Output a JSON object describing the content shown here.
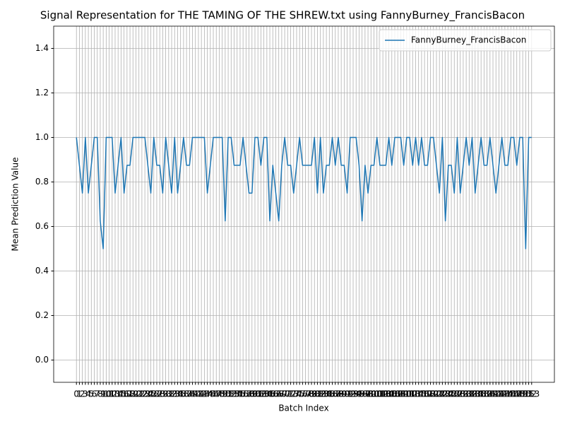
{
  "chart_data": {
    "type": "line",
    "title": "Signal Representation for THE TAMING OF THE SHREW.txt using FannyBurney_FrancisBacon",
    "xlabel": "Batch Index",
    "ylabel": "Mean Prediction Value",
    "x": [
      0,
      1,
      2,
      3,
      4,
      5,
      6,
      7,
      8,
      9,
      10,
      11,
      12,
      13,
      14,
      15,
      16,
      17,
      18,
      19,
      20,
      21,
      22,
      23,
      24,
      25,
      26,
      27,
      28,
      29,
      30,
      31,
      32,
      33,
      34,
      35,
      36,
      37,
      38,
      39,
      40,
      41,
      42,
      43,
      44,
      45,
      46,
      47,
      48,
      49,
      50,
      51,
      52,
      53,
      54,
      55,
      56,
      57,
      58,
      59,
      60,
      61,
      62,
      63,
      64,
      65,
      66,
      67,
      68,
      69,
      70,
      71,
      72,
      73,
      74,
      75,
      76,
      77,
      78,
      79,
      80,
      81,
      82,
      83,
      84,
      85,
      86,
      87,
      88,
      89,
      90,
      91,
      92,
      93,
      94,
      95,
      96,
      97,
      98,
      99,
      100,
      101,
      102,
      103,
      104,
      105,
      106,
      107,
      108,
      109,
      110,
      111,
      112,
      113,
      114,
      115,
      116,
      117,
      118,
      119,
      120,
      121,
      122,
      123,
      124,
      125,
      126,
      127,
      128,
      129,
      130,
      131,
      132,
      133,
      134,
      135,
      136,
      137,
      138,
      139,
      140,
      141,
      142,
      143,
      144,
      145,
      146,
      147,
      148,
      149,
      150,
      151,
      152,
      153
    ],
    "series": [
      {
        "name": "FannyBurney_FrancisBacon",
        "color": "#1f77b4",
        "values": [
          1.0,
          0.875,
          0.75,
          1.0,
          0.75,
          0.875,
          1.0,
          1.0,
          0.625,
          0.5,
          1.0,
          1.0,
          1.0,
          0.75,
          0.875,
          1.0,
          0.75,
          0.875,
          0.875,
          1.0,
          1.0,
          1.0,
          1.0,
          1.0,
          0.875,
          0.75,
          1.0,
          0.875,
          0.875,
          0.75,
          1.0,
          0.875,
          0.75,
          1.0,
          0.75,
          0.875,
          1.0,
          0.875,
          0.875,
          1.0,
          1.0,
          1.0,
          1.0,
          1.0,
          0.75,
          0.875,
          1.0,
          1.0,
          1.0,
          1.0,
          0.625,
          1.0,
          1.0,
          0.875,
          0.875,
          0.875,
          1.0,
          0.875,
          0.75,
          0.75,
          1.0,
          1.0,
          0.875,
          1.0,
          1.0,
          0.625,
          0.875,
          0.75,
          0.625,
          0.875,
          1.0,
          0.875,
          0.875,
          0.75,
          0.875,
          1.0,
          0.875,
          0.875,
          0.875,
          0.875,
          1.0,
          0.75,
          1.0,
          0.75,
          0.875,
          0.875,
          1.0,
          0.875,
          1.0,
          0.875,
          0.875,
          0.75,
          1.0,
          1.0,
          1.0,
          0.875,
          0.625,
          0.875,
          0.75,
          0.875,
          0.875,
          1.0,
          0.875,
          0.875,
          0.875,
          1.0,
          0.875,
          1.0,
          1.0,
          1.0,
          0.875,
          1.0,
          1.0,
          0.875,
          1.0,
          0.875,
          1.0,
          0.875,
          0.875,
          1.0,
          1.0,
          0.875,
          0.75,
          1.0,
          0.625,
          0.875,
          0.875,
          0.75,
          1.0,
          0.75,
          0.875,
          1.0,
          0.875,
          1.0,
          0.75,
          0.875,
          1.0,
          0.875,
          0.875,
          1.0,
          0.875,
          0.75,
          0.875,
          1.0,
          0.875,
          0.875,
          1.0,
          1.0,
          0.875,
          1.0,
          1.0,
          0.5,
          1.0,
          1.0
        ]
      }
    ],
    "xlim": [
      -7.65,
      160.65
    ],
    "xticks": [
      0,
      1,
      2,
      3,
      4,
      5,
      6,
      7,
      8,
      9,
      10,
      11,
      12,
      13,
      14,
      15,
      16,
      17,
      18,
      19,
      20,
      21,
      22,
      23,
      24,
      25,
      26,
      27,
      28,
      29,
      30,
      31,
      32,
      33,
      34,
      35,
      36,
      37,
      38,
      39,
      40,
      41,
      42,
      43,
      44,
      45,
      46,
      47,
      48,
      49,
      50,
      51,
      52,
      53,
      54,
      55,
      56,
      57,
      58,
      59,
      60,
      61,
      62,
      63,
      64,
      65,
      66,
      67,
      68,
      69,
      70,
      71,
      72,
      73,
      74,
      75,
      76,
      77,
      78,
      79,
      80,
      81,
      82,
      83,
      84,
      85,
      86,
      87,
      88,
      89,
      90,
      91,
      92,
      93,
      94,
      95,
      96,
      97,
      98,
      99,
      100,
      101,
      102,
      103,
      104,
      105,
      106,
      107,
      108,
      109,
      110,
      111,
      112,
      113,
      114,
      115,
      116,
      117,
      118,
      119,
      120,
      121,
      122,
      123,
      124,
      125,
      126,
      127,
      128,
      129,
      130,
      131,
      132,
      133,
      134,
      135,
      136,
      137,
      138,
      139,
      140,
      141,
      142,
      143,
      144,
      145,
      146,
      147,
      148,
      149,
      150,
      151,
      152,
      153
    ],
    "ylim": [
      -0.1,
      1.5
    ],
    "yticks": [
      {
        "value": 0,
        "label": "0.0"
      },
      {
        "value": 0.2,
        "label": "0.2"
      },
      {
        "value": 0.4,
        "label": "0.4"
      },
      {
        "value": 0.6,
        "label": "0.6"
      },
      {
        "value": 0.8,
        "label": "0.8"
      },
      {
        "value": 1.0,
        "label": "1.0"
      },
      {
        "value": 1.2,
        "label": "1.2"
      },
      {
        "value": 1.4,
        "label": "1.4"
      }
    ],
    "grid": true,
    "legend": "upper right"
  }
}
